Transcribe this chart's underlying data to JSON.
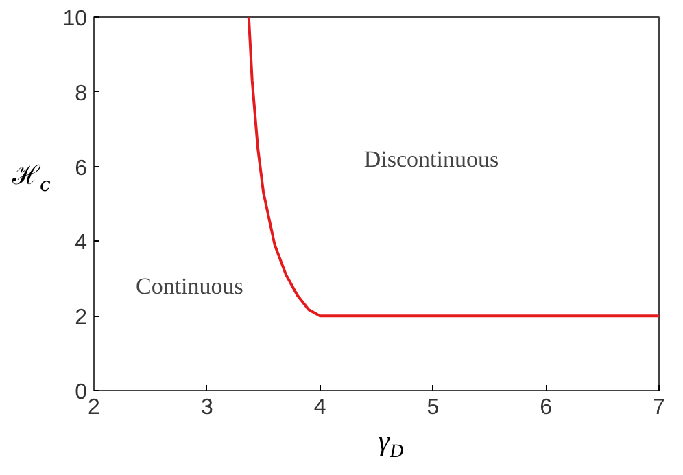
{
  "chart_data": {
    "type": "line",
    "xlabel": "γ$_{D}$",
    "ylabel": "ℋ$_{c}$",
    "x": [
      3.37,
      3.4,
      3.45,
      3.5,
      3.6,
      3.7,
      3.8,
      3.9,
      4,
      5,
      6,
      7
    ],
    "series": [
      {
        "color": "#e41a1c",
        "values": [
          10,
          8.3,
          6.5,
          5.3,
          3.9,
          3.1,
          2.55,
          2.17,
          2,
          2,
          2,
          2
        ]
      }
    ],
    "xlim": [
      2,
      7
    ],
    "ylim": [
      0,
      10
    ],
    "xticks": [
      2,
      3,
      4,
      5,
      6,
      7
    ],
    "yticks": [
      0,
      2,
      4,
      6,
      8,
      10
    ],
    "grid": false,
    "marker": "none",
    "line_style": "solid",
    "annotations": [
      "Discontinuous",
      "Continuous"
    ]
  }
}
